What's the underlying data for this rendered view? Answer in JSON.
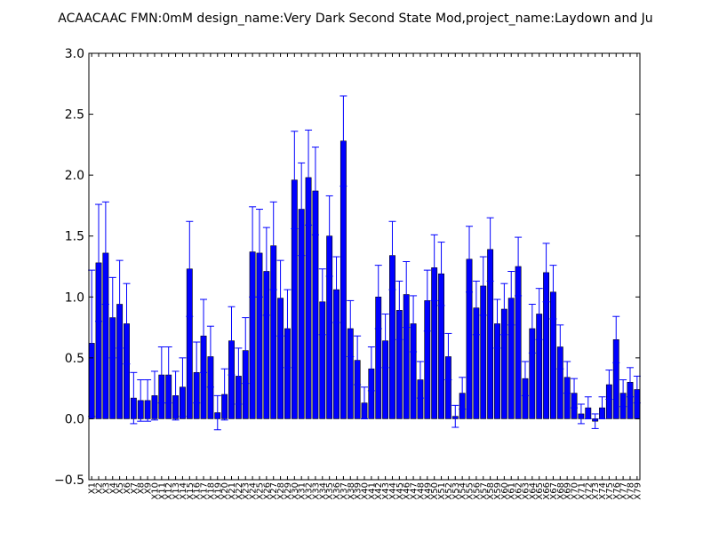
{
  "chart_data": {
    "type": "bar",
    "title": "ACAACAAC  FMN:0mM  design_name:Very Dark Second State Mod,project_name:Laydown and Ju",
    "xlabel": "",
    "ylabel": "",
    "ylim": [
      -0.5,
      3.0
    ],
    "yticks": [
      "−0.5",
      "0.0",
      "0.5",
      "1.0",
      "1.5",
      "2.0",
      "2.5",
      "3.0"
    ],
    "grid": false,
    "bar_color": "#0000ff",
    "error_color": "#0000ff",
    "categories": [
      "X1",
      "X2",
      "X3",
      "X4",
      "X5",
      "X6",
      "X7",
      "X8",
      "X9",
      "X10",
      "X11",
      "X12",
      "X13",
      "X14",
      "X15",
      "X16",
      "X17",
      "X18",
      "X19",
      "X20",
      "X21",
      "X22",
      "X23",
      "X24",
      "X25",
      "X26",
      "X27",
      "X28",
      "X29",
      "X30",
      "X31",
      "X32",
      "X33",
      "X34",
      "X35",
      "X36",
      "X37",
      "X38",
      "X39",
      "X40",
      "X41",
      "X42",
      "X43",
      "X44",
      "X45",
      "X46",
      "X47",
      "X48",
      "X49",
      "X50",
      "X51",
      "X52",
      "X53",
      "X54",
      "X55",
      "X56",
      "X57",
      "X58",
      "X59",
      "X60",
      "X61",
      "X62",
      "X63",
      "X64",
      "X65",
      "X66",
      "X67",
      "X68",
      "X69",
      "X70",
      "X71",
      "X72",
      "X73",
      "X74",
      "X75",
      "X76",
      "X77",
      "X78",
      "X79"
    ],
    "values": [
      0.62,
      1.28,
      1.36,
      0.83,
      0.94,
      0.78,
      0.17,
      0.15,
      0.15,
      0.19,
      0.36,
      0.36,
      0.19,
      0.26,
      1.23,
      0.38,
      0.68,
      0.51,
      0.05,
      0.2,
      0.64,
      0.35,
      0.56,
      1.37,
      1.36,
      1.21,
      1.42,
      0.99,
      0.74,
      1.96,
      1.72,
      1.98,
      1.87,
      0.96,
      1.5,
      1.06,
      2.28,
      0.74,
      0.48,
      0.13,
      0.41,
      1.0,
      0.64,
      1.34,
      0.89,
      1.02,
      0.78,
      0.32,
      0.97,
      1.24,
      1.19,
      0.51,
      0.02,
      0.21,
      1.31,
      0.91,
      1.09,
      1.39,
      0.78,
      0.9,
      0.99,
      1.25,
      0.33,
      0.74,
      0.86,
      1.2,
      1.04,
      0.59,
      0.34,
      0.21,
      0.04,
      0.09,
      -0.02,
      0.09,
      0.28,
      0.65,
      0.21,
      0.3,
      0.24
    ],
    "errors": [
      0.6,
      0.48,
      0.42,
      0.33,
      0.36,
      0.33,
      0.21,
      0.17,
      0.17,
      0.2,
      0.23,
      0.23,
      0.2,
      0.24,
      0.39,
      0.25,
      0.3,
      0.25,
      0.14,
      0.21,
      0.28,
      0.23,
      0.27,
      0.37,
      0.36,
      0.36,
      0.36,
      0.31,
      0.32,
      0.4,
      0.38,
      0.39,
      0.36,
      0.27,
      0.33,
      0.27,
      0.37,
      0.23,
      0.2,
      0.13,
      0.18,
      0.26,
      0.22,
      0.28,
      0.24,
      0.27,
      0.23,
      0.15,
      0.25,
      0.27,
      0.26,
      0.19,
      0.09,
      0.13,
      0.27,
      0.22,
      0.24,
      0.26,
      0.2,
      0.21,
      0.22,
      0.24,
      0.14,
      0.2,
      0.21,
      0.24,
      0.22,
      0.18,
      0.13,
      0.12,
      0.08,
      0.09,
      0.06,
      0.09,
      0.12,
      0.19,
      0.11,
      0.12,
      0.11
    ]
  }
}
